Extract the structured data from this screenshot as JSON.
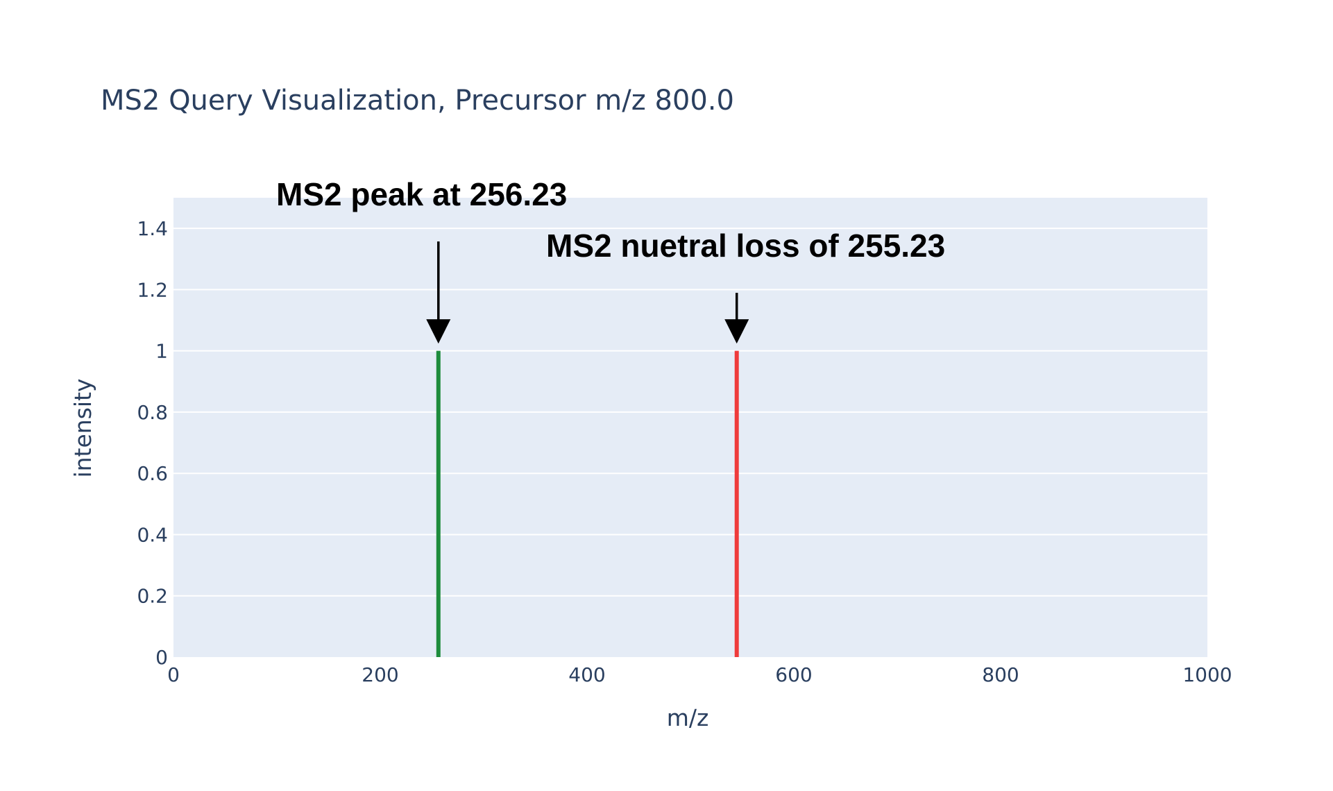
{
  "chart_data": {
    "type": "bar",
    "title": "MS2 Query Visualization, Precursor m/z 800.0",
    "xlabel": "m/z",
    "ylabel": "intensity",
    "xlim": [
      0,
      1000
    ],
    "ylim": [
      0,
      1.5
    ],
    "x_ticks": [
      "0",
      "200",
      "400",
      "600",
      "800",
      "1000"
    ],
    "y_ticks": [
      "0",
      "0.2",
      "0.4",
      "0.6",
      "0.8",
      "1",
      "1.2",
      "1.4"
    ],
    "grid": true,
    "plot_background": "#e5ecf6",
    "peaks": [
      {
        "mz": 256.23,
        "intensity": 1,
        "color": "#1e8c3c"
      },
      {
        "mz": 544.77,
        "intensity": 1,
        "color": "#ef3b3b"
      }
    ],
    "annotations": [
      {
        "text": "MS2 peak at 256.23",
        "target_mz": 256.23,
        "target_intensity": 1
      },
      {
        "text": "MS2 nuetral loss of 255.23",
        "target_mz": 544.77,
        "target_intensity": 1
      }
    ]
  }
}
